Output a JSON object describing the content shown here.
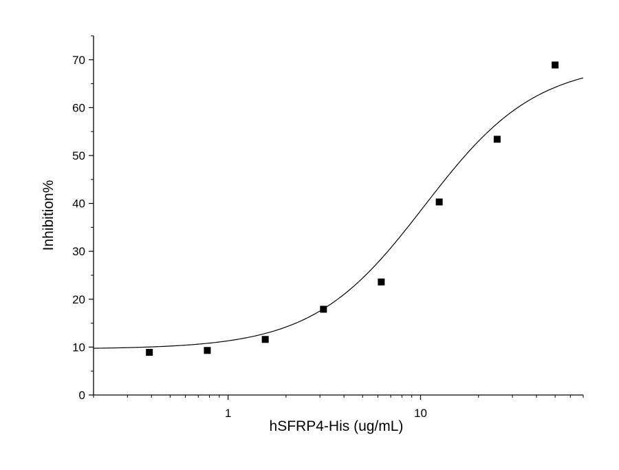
{
  "chart_data": {
    "type": "scatter",
    "title": "",
    "xlabel": "hSFRP4-His (ug/mL)",
    "ylabel": "Inhibition%",
    "x_scale": "log",
    "xlim": [
      0.2,
      70
    ],
    "ylim": [
      0,
      75
    ],
    "x_ticks_major": [
      1,
      10
    ],
    "x_tick_labels": [
      "1",
      "10"
    ],
    "y_ticks": [
      0,
      10,
      20,
      30,
      40,
      50,
      60,
      70
    ],
    "y_tick_labels": [
      "0",
      "10",
      "20",
      "30",
      "40",
      "50",
      "60",
      "70"
    ],
    "grid": false,
    "legend": "none",
    "marker": "square",
    "color": "#000000",
    "points": [
      {
        "x": 0.39,
        "y": 8.9
      },
      {
        "x": 0.78,
        "y": 9.3
      },
      {
        "x": 1.56,
        "y": 11.6
      },
      {
        "x": 3.13,
        "y": 17.9
      },
      {
        "x": 6.25,
        "y": 23.6
      },
      {
        "x": 12.5,
        "y": 40.3
      },
      {
        "x": 25,
        "y": 53.4
      },
      {
        "x": 50,
        "y": 68.9
      }
    ],
    "fit_curve": {
      "model": "four-parameter logistic",
      "bottom": 9.6,
      "top": 69.5,
      "ec50": 10.5,
      "hill": 1.5
    }
  }
}
